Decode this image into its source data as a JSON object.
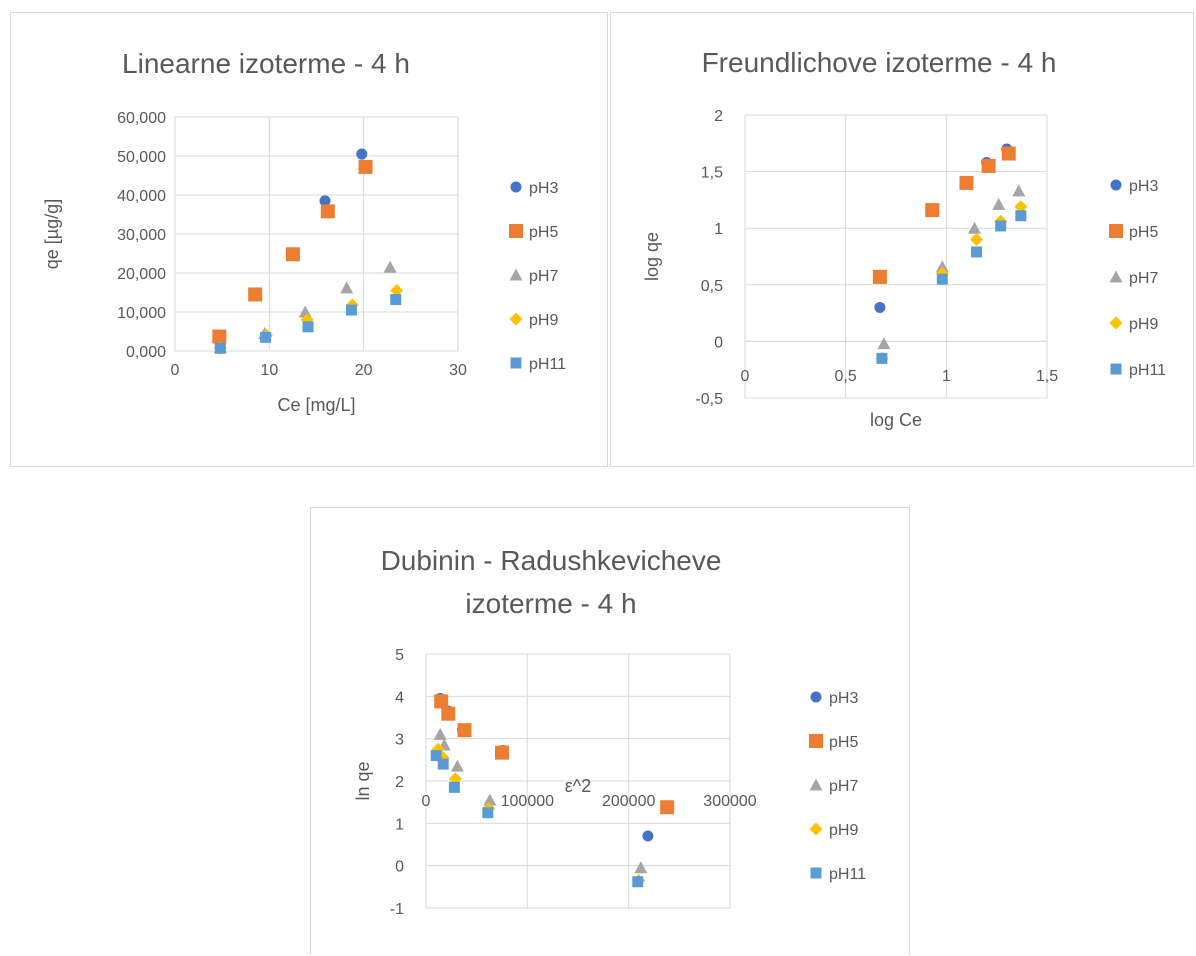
{
  "charts": [
    {
      "title_lines": [
        "Linearne izoterme - 4 h"
      ],
      "xlabel": "Ce [mg/L]",
      "ylabel": "qe [µg/g]"
    },
    {
      "title_lines": [
        "Freundlichove izoterme - 4 h"
      ],
      "xlabel": "log Ce",
      "ylabel": "log qe"
    },
    {
      "title_lines": [
        "Dubinin - Radushkevicheve",
        "izoterme - 4 h"
      ],
      "xlabel": "ε^2",
      "ylabel": "ln qe"
    }
  ],
  "chart_data": [
    {
      "type": "scatter",
      "title": "Linearne izoterme - 4 h",
      "xlabel": "Ce [mg/L]",
      "ylabel": "qe [µg/g]",
      "xlim": [
        0,
        30
      ],
      "ylim": [
        0,
        60000
      ],
      "xticks": [
        "0",
        "10",
        "20",
        "30"
      ],
      "yticks": [
        "0,000",
        "10,000",
        "20,000",
        "30,000",
        "40,000",
        "50,000",
        "60,000"
      ],
      "grid": true,
      "legend_position": "right",
      "series": [
        {
          "name": "pH3",
          "marker": "circle",
          "color": "#4472c4",
          "x": [
            4.7,
            8.5,
            12.5,
            15.9,
            19.8
          ],
          "y": [
            3700,
            14800,
            24800,
            38500,
            50500
          ]
        },
        {
          "name": "pH5",
          "marker": "square",
          "color": "#ed7d31",
          "x": [
            4.7,
            8.5,
            12.5,
            16.2,
            20.2
          ],
          "y": [
            3700,
            14500,
            24800,
            35800,
            47200
          ]
        },
        {
          "name": "pH7",
          "marker": "triangle",
          "color": "#a5a5a5",
          "x": [
            4.8,
            9.5,
            13.8,
            18.2,
            22.8
          ],
          "y": [
            900,
            4500,
            10000,
            16200,
            21500
          ]
        },
        {
          "name": "pH9",
          "marker": "diamond",
          "color": "#ffc000",
          "x": [
            4.8,
            9.7,
            14.0,
            18.8,
            23.5
          ],
          "y": [
            700,
            4000,
            8000,
            11800,
            15500
          ]
        },
        {
          "name": "pH11",
          "marker": "square",
          "color": "#5b9bd5",
          "x": [
            4.8,
            9.6,
            14.1,
            18.7,
            23.4
          ],
          "y": [
            700,
            3500,
            6200,
            10500,
            13200
          ]
        }
      ]
    },
    {
      "type": "scatter",
      "title": "Freundlichove izoterme - 4 h",
      "xlabel": "log Ce",
      "ylabel": "log qe",
      "xlim": [
        0,
        1.5
      ],
      "ylim": [
        -0.5,
        2
      ],
      "xticks": [
        "0",
        "0,5",
        "1",
        "1,5"
      ],
      "yticks": [
        "-0,5",
        "0",
        "0,5",
        "1",
        "1,5",
        "2"
      ],
      "grid": true,
      "legend_position": "right",
      "series": [
        {
          "name": "pH3",
          "marker": "circle",
          "color": "#4472c4",
          "x": [
            0.67,
            0.93,
            1.1,
            1.2,
            1.3
          ],
          "y": [
            0.3,
            1.16,
            1.4,
            1.58,
            1.7
          ]
        },
        {
          "name": "pH5",
          "marker": "square",
          "color": "#ed7d31",
          "x": [
            0.67,
            0.93,
            1.1,
            1.21,
            1.31
          ],
          "y": [
            0.57,
            1.16,
            1.4,
            1.55,
            1.66
          ]
        },
        {
          "name": "pH7",
          "marker": "triangle",
          "color": "#a5a5a5",
          "x": [
            0.69,
            0.98,
            1.14,
            1.26,
            1.36
          ],
          "y": [
            -0.02,
            0.66,
            1.0,
            1.21,
            1.33
          ]
        },
        {
          "name": "pH9",
          "marker": "diamond",
          "color": "#ffc000",
          "x": [
            0.68,
            0.98,
            1.15,
            1.27,
            1.37
          ],
          "y": [
            -0.15,
            0.6,
            0.9,
            1.06,
            1.19
          ]
        },
        {
          "name": "pH11",
          "marker": "square",
          "color": "#5b9bd5",
          "x": [
            0.68,
            0.98,
            1.15,
            1.27,
            1.37
          ],
          "y": [
            -0.15,
            0.55,
            0.79,
            1.02,
            1.11
          ]
        }
      ]
    },
    {
      "type": "scatter",
      "title": "Dubinin - Radushkevicheve izoterme - 4 h",
      "xlabel": "ε^2",
      "ylabel": "ln qe",
      "xlim": [
        0,
        300000
      ],
      "ylim": [
        -1,
        5
      ],
      "xticks": [
        "0",
        "100000",
        "200000",
        "300000"
      ],
      "yticks": [
        "-1",
        "0",
        "1",
        "2",
        "3",
        "4",
        "5"
      ],
      "grid": true,
      "legend_position": "right",
      "series": [
        {
          "name": "pH3",
          "marker": "circle",
          "color": "#4472c4",
          "x": [
            14000,
            22000,
            36000,
            76000,
            219000
          ],
          "y": [
            3.95,
            3.65,
            3.22,
            2.72,
            0.7
          ]
        },
        {
          "name": "pH5",
          "marker": "square",
          "color": "#ed7d31",
          "x": [
            15000,
            22000,
            38000,
            75000,
            238000
          ],
          "y": [
            3.88,
            3.59,
            3.2,
            2.67,
            1.38
          ]
        },
        {
          "name": "pH7",
          "marker": "triangle",
          "color": "#a5a5a5",
          "x": [
            14000,
            18000,
            31000,
            63000,
            212000
          ],
          "y": [
            3.1,
            2.85,
            2.35,
            1.55,
            -0.05
          ]
        },
        {
          "name": "pH9",
          "marker": "diamond",
          "color": "#ffc000",
          "x": [
            12000,
            17000,
            29000,
            62000,
            210000
          ],
          "y": [
            2.75,
            2.55,
            2.05,
            1.35,
            -0.35
          ]
        },
        {
          "name": "pH11",
          "marker": "square",
          "color": "#5b9bd5",
          "x": [
            10000,
            17000,
            28000,
            61000,
            209000
          ],
          "y": [
            2.6,
            2.4,
            1.85,
            1.25,
            -0.38
          ]
        }
      ]
    }
  ]
}
